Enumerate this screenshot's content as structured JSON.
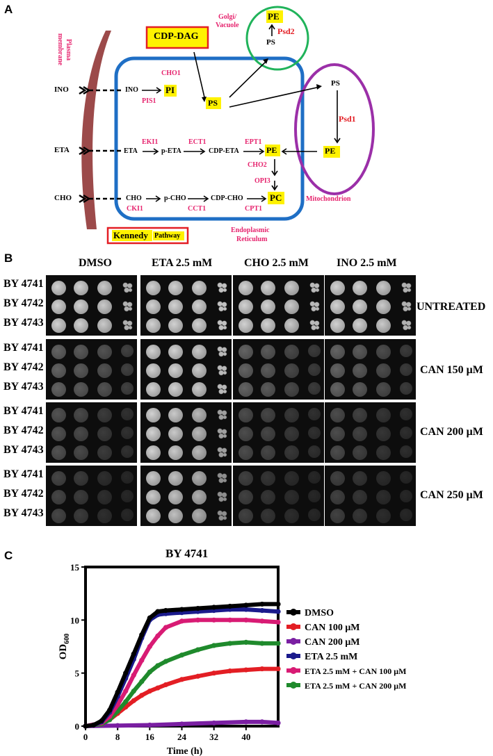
{
  "panels": {
    "a": "A",
    "b": "B",
    "c": "C"
  },
  "panel_a": {
    "plasma_membrane": [
      "Plasma",
      "membrane"
    ],
    "inputs": [
      "INO",
      "ETA",
      "CHO"
    ],
    "cdp_dag": "CDP-DAG",
    "golgi": [
      "Golgi/",
      "Vacuole"
    ],
    "golgi_pe": "PE",
    "golgi_ps": "PS",
    "psd2": "Psd2",
    "cho1": "CHO1",
    "ino_in": "INO",
    "pi": "PI",
    "pis1": "PIS1",
    "ps_er": "PS",
    "mito_ps": "PS",
    "psd1": "Psd1",
    "mito_pe": "PE",
    "mitochondrion": "Mitochondrion",
    "eki1": "EKI1",
    "ect1": "ECT1",
    "ept1": "EPT1",
    "eta_in": "ETA",
    "p_eta": "p-ETA",
    "cdp_eta": "CDP-ETA",
    "pe_er": "PE",
    "cho2": "CHO2",
    "opi3": "OPI3",
    "cho_in": "CHO",
    "p_cho": "p-CHO",
    "cdp_cho": "CDP-CHO",
    "pc": "PC",
    "cki1": "CKI1",
    "cct1": "CCT1",
    "cpt1": "CPT1",
    "kennedy": "Kennedy",
    "pathway": "Pathway",
    "er": [
      "Endoplasmic",
      "Reticulum"
    ],
    "colors": {
      "pink": "#e6246e",
      "red": "#e31e24",
      "blue": "#1f6fc5",
      "green": "#20b35a",
      "purple": "#9b2fa8",
      "membrane": "#9c4a4a",
      "highlight": "#fff200"
    }
  },
  "panel_b": {
    "columns": [
      "DMSO",
      "ETA 2.5 mM",
      "CHO 2.5 mM",
      "INO 2.5  mM"
    ],
    "strains": [
      "BY 4741",
      "BY 4742",
      "BY 4743"
    ],
    "conditions": [
      "UNTREATED",
      "CAN 150 μM",
      "CAN 200 μM",
      "CAN 250 μM"
    ]
  },
  "panel_c": {
    "title": "BY 4741",
    "legend": [
      "DMSO",
      "CAN 100 μM",
      "CAN 200 μM",
      "ETA 2.5 mM",
      "ETA 2.5 mM + CAN 100 μM",
      "ETA 2.5 mM + CAN 200 μM"
    ]
  },
  "chart_data": {
    "type": "line",
    "title": "BY 4741",
    "xlabel": "Time (h)",
    "ylabel": "OD600",
    "xlim": [
      0,
      48
    ],
    "ylim": [
      0,
      15
    ],
    "xticks": [
      0,
      8,
      16,
      24,
      32,
      40
    ],
    "yticks": [
      0,
      5,
      10,
      15
    ],
    "legend_position": "right",
    "series": [
      {
        "name": "DMSO",
        "color": "#000000",
        "x": [
          0,
          2,
          4,
          6,
          8,
          10,
          12,
          14,
          16,
          18,
          20,
          24,
          28,
          32,
          36,
          40,
          44,
          48
        ],
        "y": [
          0,
          0.1,
          0.5,
          1.5,
          3.2,
          5,
          6.8,
          8.6,
          10.2,
          10.8,
          10.9,
          11.0,
          11.1,
          11.2,
          11.3,
          11.4,
          11.5,
          11.5
        ]
      },
      {
        "name": "CAN 100 μM",
        "color": "#e31e24",
        "x": [
          0,
          4,
          6,
          8,
          10,
          12,
          14,
          16,
          18,
          20,
          24,
          28,
          32,
          36,
          40,
          44,
          48
        ],
        "y": [
          0,
          0.2,
          0.6,
          1.2,
          1.8,
          2.4,
          2.9,
          3.3,
          3.6,
          3.9,
          4.4,
          4.7,
          5.0,
          5.2,
          5.3,
          5.4,
          5.4
        ]
      },
      {
        "name": "CAN 200 μM",
        "color": "#7a1fa2",
        "x": [
          0,
          8,
          16,
          24,
          32,
          40,
          44,
          48
        ],
        "y": [
          0,
          0.05,
          0.1,
          0.2,
          0.3,
          0.4,
          0.4,
          0.3
        ]
      },
      {
        "name": "ETA 2.5 mM",
        "color": "#1a1a8c",
        "x": [
          0,
          2,
          4,
          6,
          8,
          10,
          12,
          14,
          16,
          18,
          20,
          24,
          28,
          32,
          36,
          40,
          44,
          48
        ],
        "y": [
          0,
          0.1,
          0.4,
          1.3,
          2.8,
          4.5,
          6.3,
          8.3,
          10.0,
          10.5,
          10.6,
          10.7,
          10.8,
          10.9,
          11.0,
          11.0,
          10.9,
          10.8
        ]
      },
      {
        "name": "ETA 2.5 mM + CAN 100 μM",
        "color": "#d81b74",
        "x": [
          0,
          4,
          6,
          8,
          10,
          12,
          14,
          16,
          18,
          20,
          24,
          28,
          32,
          36,
          40,
          44,
          48
        ],
        "y": [
          0,
          0.3,
          0.9,
          2.0,
          3.3,
          4.8,
          6.2,
          7.5,
          8.5,
          9.3,
          9.9,
          10.0,
          10.0,
          10.0,
          10.0,
          9.9,
          9.8
        ]
      },
      {
        "name": "ETA 2.5 mM + CAN 200 μM",
        "color": "#1f8a2c",
        "x": [
          0,
          4,
          6,
          8,
          10,
          12,
          14,
          16,
          18,
          20,
          24,
          28,
          32,
          36,
          40,
          44,
          48
        ],
        "y": [
          0,
          0.2,
          0.6,
          1.4,
          2.3,
          3.3,
          4.2,
          5.1,
          5.7,
          6.1,
          6.7,
          7.2,
          7.6,
          7.8,
          7.9,
          7.8,
          7.8
        ]
      }
    ]
  }
}
